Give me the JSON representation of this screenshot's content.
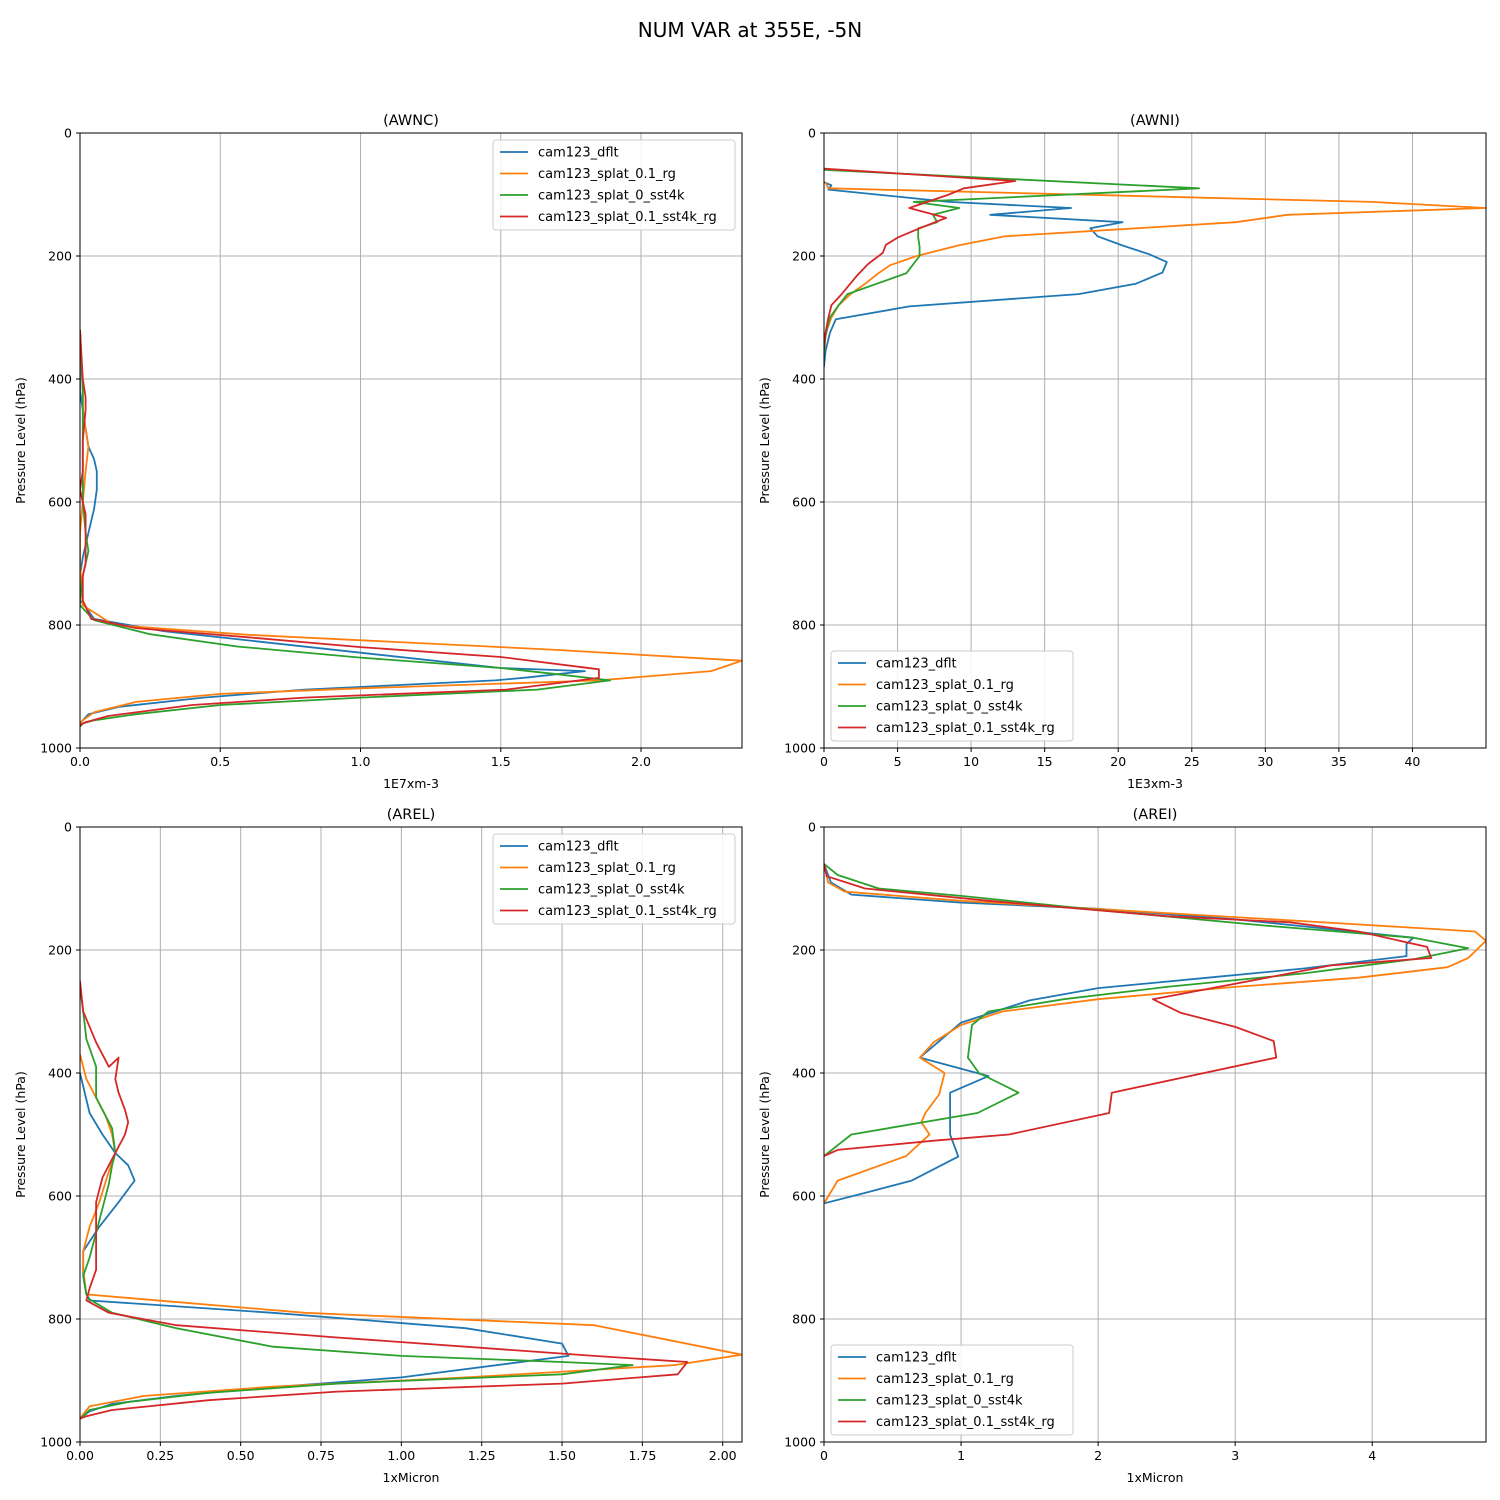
{
  "title": "NUM VAR at 355E, -5N",
  "colors": {
    "cam123_dflt": "#1f77b4",
    "cam123_splat_0.1_rg": "#ff7f0e",
    "cam123_splat_0_sst4k": "#2ca02c",
    "cam123_splat_0.1_sst4k_rg": "#d62728"
  },
  "chart_data": [
    {
      "id": "awnc",
      "type": "line",
      "title": "(AWNC)",
      "xlabel": "1E7xm-3",
      "ylabel": "Pressure Level (hPa)",
      "xlim": [
        0,
        2.36
      ],
      "ylim": [
        1000,
        0
      ],
      "xticks": [
        0,
        0.5,
        1.0,
        1.5,
        2.0
      ],
      "xtick_labels": [
        "0.0",
        "0.5",
        "1.0",
        "1.5",
        "2.0"
      ],
      "yticks": [
        0,
        200,
        400,
        600,
        800,
        1000
      ],
      "ytick_labels": [
        "0",
        "200",
        "400",
        "600",
        "800",
        "1000"
      ],
      "legend_loc": "upper right",
      "series": [
        {
          "name": "cam123_dflt",
          "x": [
            0,
            0,
            0.01,
            0.02,
            0.03,
            0.05,
            0.06,
            0.06,
            0.05,
            0.03,
            0.01,
            0,
            0,
            0.02,
            0.05,
            0.3,
            1.0,
            1.5,
            1.8,
            1.6,
            1.48,
            0.8,
            0.44,
            0.14,
            0.03,
            0.01,
            0
          ],
          "y": [
            320,
            420,
            450,
            480,
            510,
            530,
            550,
            580,
            612,
            650,
            690,
            720,
            760,
            770,
            790,
            810,
            845,
            870,
            875,
            885,
            890,
            905,
            918,
            933,
            945,
            955,
            960
          ]
        },
        {
          "name": "cam123_splat_0.1_rg",
          "x": [
            0,
            0.01,
            0.01,
            0.02,
            0.03,
            0.02,
            0.01,
            0,
            0,
            0.01,
            0.12,
            0.6,
            1.68,
            2.36,
            2.25,
            1.85,
            1.0,
            0.5,
            0.2,
            0.05,
            0.01,
            0
          ],
          "y": [
            320,
            420,
            450,
            480,
            510,
            550,
            600,
            650,
            700,
            768,
            800,
            816,
            840,
            858,
            875,
            890,
            903,
            912,
            925,
            942,
            955,
            960
          ]
        },
        {
          "name": "cam123_splat_0_sst4k",
          "x": [
            0,
            0.01,
            0.01,
            0.01,
            0.01,
            0.01,
            0.01,
            0.02,
            0.03,
            0.02,
            0.01,
            0,
            0,
            0.05,
            0.25,
            0.56,
            1.0,
            1.5,
            1.7,
            1.89,
            1.63,
            1.0,
            0.5,
            0.2,
            0.05,
            0.01,
            0
          ],
          "y": [
            320,
            420,
            450,
            480,
            510,
            550,
            600,
            650,
            680,
            700,
            720,
            760,
            768,
            792,
            815,
            835,
            853,
            870,
            880,
            890,
            905,
            918,
            930,
            945,
            955,
            960,
            965
          ]
        },
        {
          "name": "cam123_splat_0.1_sst4k_rg",
          "x": [
            0,
            0.01,
            0.02,
            0.02,
            0.01,
            0.01,
            0,
            0.01,
            0.02,
            0.02,
            0.02,
            0.01,
            0.01,
            0.04,
            0.2,
            0.6,
            1.0,
            1.5,
            1.85,
            1.85,
            1.52,
            0.8,
            0.4,
            0.1,
            0.02,
            0
          ],
          "y": [
            320,
            400,
            430,
            450,
            500,
            550,
            580,
            600,
            620,
            650,
            700,
            720,
            760,
            790,
            805,
            820,
            836,
            852,
            872,
            886,
            905,
            918,
            930,
            948,
            958,
            963
          ]
        }
      ]
    },
    {
      "id": "awni",
      "type": "line",
      "title": "(AWNI)",
      "xlabel": "1E3xm-3",
      "ylabel": "Pressure Level (hPa)",
      "xlim": [
        0,
        45
      ],
      "ylim": [
        1000,
        0
      ],
      "xticks": [
        0,
        5,
        10,
        15,
        20,
        25,
        30,
        35,
        40
      ],
      "xtick_labels": [
        "0",
        "5",
        "10",
        "15",
        "20",
        "25",
        "30",
        "35",
        "40"
      ],
      "yticks": [
        0,
        200,
        400,
        600,
        800,
        1000
      ],
      "ytick_labels": [
        "0",
        "200",
        "400",
        "600",
        "800",
        "1000"
      ],
      "legend_loc": "lower left",
      "series": [
        {
          "name": "cam123_dflt",
          "x": [
            0,
            0.5,
            0.3,
            8.5,
            16.8,
            11.3,
            20.3,
            18.1,
            18.6,
            20.3,
            22.1,
            23.3,
            23.0,
            21.2,
            17.3,
            5.8,
            0.8,
            0.4,
            0.1,
            0
          ],
          "y": [
            80,
            85,
            92,
            112,
            122,
            133,
            145,
            155,
            168,
            183,
            197,
            210,
            227,
            245,
            262,
            282,
            303,
            325,
            355,
            380
          ]
        },
        {
          "name": "cam123_splat_0.1_rg",
          "x": [
            0.1,
            0.3,
            37.2,
            45.0,
            31.5,
            28.0,
            12.3,
            9.1,
            6.3,
            4.5,
            3.7,
            2.8,
            1.8,
            1.0,
            0.5,
            0.2,
            0
          ],
          "y": [
            80,
            90,
            112,
            122,
            133,
            145,
            168,
            183,
            200,
            215,
            228,
            245,
            262,
            280,
            300,
            320,
            345
          ]
        },
        {
          "name": "cam123_splat_0_sst4k",
          "x": [
            0,
            25.5,
            6.1,
            9.2,
            7.4,
            7.7,
            6.4,
            6.4,
            6.5,
            6.5,
            5.6,
            1.6,
            1.0,
            0.4,
            0.1,
            0
          ],
          "y": [
            60,
            90,
            112,
            122,
            133,
            145,
            155,
            170,
            185,
            200,
            228,
            262,
            280,
            300,
            330,
            360
          ]
        },
        {
          "name": "cam123_splat_0.1_sst4k_rg",
          "x": [
            0,
            13.0,
            9.5,
            8.5,
            5.8,
            8.3,
            6.5,
            5.0,
            4.2,
            4.0,
            3.0,
            2.2,
            1.2,
            0.5,
            0.3,
            0.1,
            0
          ],
          "y": [
            58,
            78,
            90,
            100,
            122,
            138,
            155,
            170,
            182,
            195,
            213,
            233,
            262,
            280,
            300,
            325,
            350
          ]
        }
      ]
    },
    {
      "id": "arel",
      "type": "line",
      "title": "(AREL)",
      "xlabel": "1xMicron",
      "ylabel": "Pressure Level (hPa)",
      "xlim": [
        0,
        2.06
      ],
      "ylim": [
        1000,
        0
      ],
      "xticks": [
        0,
        0.25,
        0.5,
        0.75,
        1.0,
        1.25,
        1.5,
        1.75,
        2.0
      ],
      "xtick_labels": [
        "0.00",
        "0.25",
        "0.50",
        "0.75",
        "1.00",
        "1.25",
        "1.50",
        "1.75",
        "2.00"
      ],
      "yticks": [
        0,
        200,
        400,
        600,
        800,
        1000
      ],
      "ytick_labels": [
        "0",
        "200",
        "400",
        "600",
        "800",
        "1000"
      ],
      "legend_loc": "upper right",
      "series": [
        {
          "name": "cam123_dflt",
          "x": [
            0,
            0.03,
            0.07,
            0.11,
            0.15,
            0.17,
            0.12,
            0.06,
            0.01,
            0.01,
            0.02,
            0.03,
            0.6,
            1.2,
            1.5,
            1.52,
            1.0,
            0.5,
            0.3,
            0.1,
            0.03,
            0.01,
            0
          ],
          "y": [
            400,
            465,
            500,
            530,
            550,
            575,
            610,
            650,
            690,
            730,
            760,
            770,
            790,
            815,
            840,
            860,
            895,
            915,
            925,
            938,
            950,
            958,
            962
          ]
        },
        {
          "name": "cam123_splat_0.1_rg",
          "x": [
            0,
            0.02,
            0.05,
            0.08,
            0.1,
            0.11,
            0.09,
            0.06,
            0.03,
            0.01,
            0.01,
            0.02,
            0.2,
            0.7,
            1.6,
            2.06,
            1.85,
            1.2,
            0.6,
            0.2,
            0.03,
            0.01,
            0
          ],
          "y": [
            370,
            410,
            440,
            470,
            500,
            530,
            560,
            610,
            650,
            690,
            720,
            760,
            768,
            790,
            810,
            858,
            875,
            895,
            910,
            925,
            942,
            955,
            962
          ]
        },
        {
          "name": "cam123_splat_0_sst4k",
          "x": [
            0,
            0.01,
            0.02,
            0.04,
            0.05,
            0.05,
            0.05,
            0.07,
            0.1,
            0.11,
            0.1,
            0.09,
            0.07,
            0.05,
            0.03,
            0.01,
            0.02,
            0.03,
            0.1,
            0.3,
            0.6,
            1.0,
            1.5,
            1.72,
            1.5,
            0.8,
            0.4,
            0.15,
            0.03,
            0.01,
            0
          ],
          "y": [
            260,
            300,
            345,
            375,
            390,
            405,
            440,
            460,
            490,
            530,
            550,
            580,
            620,
            660,
            700,
            730,
            760,
            768,
            790,
            815,
            845,
            860,
            870,
            875,
            890,
            905,
            920,
            935,
            948,
            958,
            962
          ]
        },
        {
          "name": "cam123_splat_0.1_sst4k_rg",
          "x": [
            0,
            0.01,
            0.05,
            0.09,
            0.12,
            0.11,
            0.12,
            0.14,
            0.15,
            0.14,
            0.1,
            0.07,
            0.05,
            0.05,
            0.05,
            0.05,
            0.03,
            0.02,
            0.09,
            0.3,
            0.8,
            1.6,
            1.89,
            1.86,
            1.5,
            0.8,
            0.4,
            0.1,
            0.02,
            0
          ],
          "y": [
            250,
            300,
            350,
            390,
            375,
            410,
            432,
            460,
            480,
            500,
            540,
            570,
            610,
            650,
            680,
            720,
            750,
            770,
            790,
            810,
            830,
            860,
            870,
            890,
            905,
            918,
            932,
            948,
            958,
            962
          ]
        }
      ]
    },
    {
      "id": "arei",
      "type": "line",
      "title": "(AREI)",
      "xlabel": "1xMicron",
      "ylabel": "Pressure Level (hPa)",
      "xlim": [
        0,
        4.83
      ],
      "ylim": [
        1000,
        0
      ],
      "xticks": [
        0,
        1,
        2,
        3,
        4
      ],
      "xtick_labels": [
        "0",
        "1",
        "2",
        "3",
        "4"
      ],
      "yticks": [
        0,
        200,
        400,
        600,
        800,
        1000
      ],
      "ytick_labels": [
        "0",
        "200",
        "400",
        "600",
        "800",
        "1000"
      ],
      "legend_loc": "lower left",
      "series": [
        {
          "name": "cam123_dflt",
          "x": [
            0,
            0.05,
            0.2,
            1.0,
            2.0,
            3.0,
            4.3,
            4.25,
            4.25,
            3.5,
            2.8,
            2.0,
            1.5,
            1.0,
            0.7,
            1.2,
            0.92,
            0.92,
            0.92,
            0.98,
            0.64,
            0.3,
            0
          ],
          "y": [
            60,
            90,
            110,
            123,
            133,
            150,
            180,
            190,
            210,
            230,
            245,
            262,
            282,
            318,
            375,
            405,
            432,
            465,
            500,
            536,
            575,
            595,
            612
          ]
        },
        {
          "name": "cam123_splat_0.1_rg",
          "x": [
            0,
            0.03,
            0.15,
            1.0,
            2.5,
            3.8,
            4.75,
            4.83,
            4.7,
            4.55,
            3.9,
            3.0,
            2.0,
            1.3,
            1.0,
            0.8,
            0.7,
            0.88,
            0.84,
            0.74,
            0.71,
            0.77,
            0.6,
            0.1,
            0
          ],
          "y": [
            60,
            90,
            105,
            120,
            140,
            157,
            170,
            185,
            213,
            228,
            245,
            260,
            280,
            300,
            322,
            350,
            375,
            400,
            435,
            465,
            480,
            500,
            535,
            575,
            612
          ]
        },
        {
          "name": "cam123_splat_0_sst4k",
          "x": [
            0,
            0.1,
            0.4,
            1.0,
            2.0,
            3.2,
            4.3,
            4.7,
            4.3,
            3.5,
            2.5,
            1.75,
            1.2,
            1.08,
            1.05,
            1.13,
            1.42,
            1.12,
            0.2,
            0
          ],
          "y": [
            60,
            78,
            100,
            112,
            135,
            160,
            180,
            197,
            215,
            238,
            260,
            280,
            300,
            322,
            375,
            400,
            432,
            465,
            500,
            535
          ]
        },
        {
          "name": "cam123_splat_0.1_sst4k_rg",
          "x": [
            0,
            0.02,
            0.3,
            1.2,
            2.5,
            3.4,
            3.9,
            4.4,
            4.43,
            3.7,
            3.0,
            2.4,
            2.6,
            3.0,
            3.28,
            3.3,
            2.1,
            2.08,
            1.35,
            0.8,
            0.1,
            0
          ],
          "y": [
            60,
            80,
            100,
            120,
            145,
            155,
            170,
            195,
            213,
            225,
            255,
            280,
            302,
            325,
            348,
            375,
            432,
            465,
            500,
            510,
            525,
            535
          ]
        }
      ]
    }
  ]
}
